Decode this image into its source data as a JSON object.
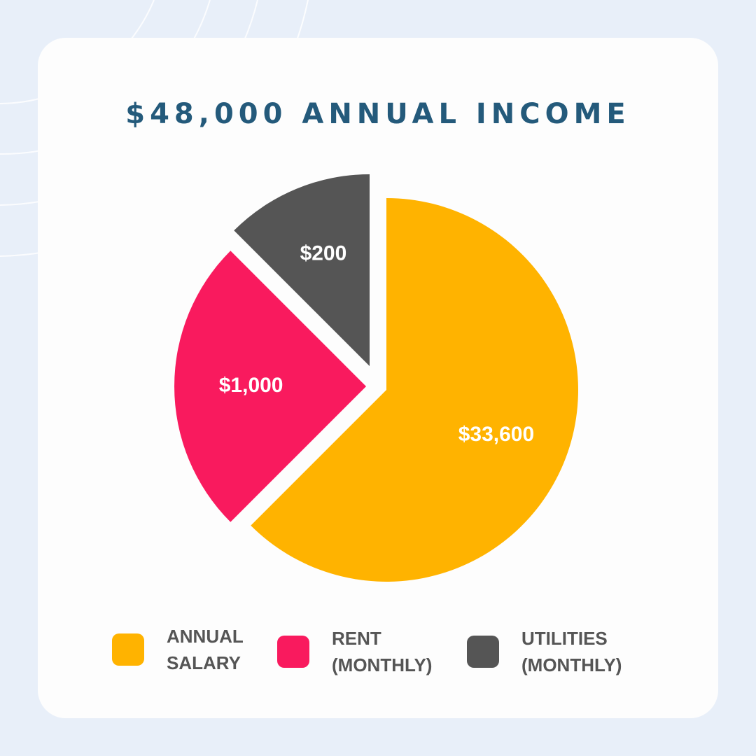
{
  "page": {
    "background_color": "#E8EFF9",
    "card_color": "#FDFDFD"
  },
  "chart_data": {
    "type": "pie",
    "title": "$48,000 ANNUAL INCOME",
    "title_color": "#245A7B",
    "slices": [
      {
        "legend_lines": [
          "ANNUAL",
          "SALARY"
        ],
        "value": 33600,
        "label": "$33,600",
        "color": "#FFB300"
      },
      {
        "legend_lines": [
          "RENT",
          "(MONTHLY)"
        ],
        "value": 1000,
        "label": "$1,000",
        "color": "#F91A5E"
      },
      {
        "legend_lines": [
          "UTILITIES",
          "(MONTHLY)"
        ],
        "value": 200,
        "label": "$200",
        "color": "#555555"
      }
    ],
    "slice_angles_deg": [
      225,
      90,
      45
    ],
    "legend_position": "bottom"
  }
}
